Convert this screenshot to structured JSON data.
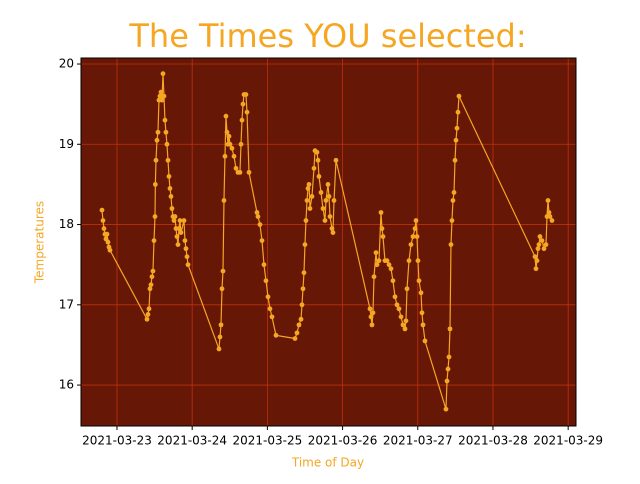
{
  "chart_data": {
    "type": "line",
    "title": "The Times YOU selected:",
    "x_label": "Time of Day",
    "y_label": "Temperatures",
    "color": "#f5a623",
    "background": "#661706",
    "grid_color": "#c2300a",
    "grid": true,
    "x": [
      "2021-03-22T19:13",
      "2021-03-22T19:32",
      "2021-03-22T19:51",
      "2021-03-22T20:10",
      "2021-03-22T20:29",
      "2021-03-22T20:49",
      "2021-03-22T21:08",
      "2021-03-22T21:27",
      "2021-03-22T21:46",
      "2021-03-23T09:35",
      "2021-03-23T09:54",
      "2021-03-23T10:13",
      "2021-03-23T10:32",
      "2021-03-23T10:51",
      "2021-03-23T11:10",
      "2021-03-23T11:29",
      "2021-03-23T11:49",
      "2021-03-23T12:08",
      "2021-03-23T12:15",
      "2021-03-23T12:27",
      "2021-03-23T12:46",
      "2021-03-23T13:05",
      "2021-03-23T13:24",
      "2021-03-23T13:43",
      "2021-03-23T14:03",
      "2021-03-23T14:22",
      "2021-03-23T14:41",
      "2021-03-23T15:00",
      "2021-03-23T15:19",
      "2021-03-23T15:38",
      "2021-03-23T15:57",
      "2021-03-23T16:17",
      "2021-03-23T16:36",
      "2021-03-23T16:55",
      "2021-03-23T17:14",
      "2021-03-23T17:33",
      "2021-03-23T17:52",
      "2021-03-23T18:12",
      "2021-03-23T18:31",
      "2021-03-23T18:50",
      "2021-03-23T19:09",
      "2021-03-23T19:28",
      "2021-03-23T19:47",
      "2021-03-23T20:06",
      "2021-03-23T20:26",
      "2021-03-23T21:23",
      "2021-03-23T21:42",
      "2021-03-23T22:01",
      "2021-03-23T22:21",
      "2021-03-23T22:40",
      "2021-03-24T08:33",
      "2021-03-24T08:52",
      "2021-03-24T09:12",
      "2021-03-24T09:31",
      "2021-03-24T09:50",
      "2021-03-24T10:09",
      "2021-03-24T10:28",
      "2021-03-24T10:47",
      "2021-03-24T11:07",
      "2021-03-24T11:26",
      "2021-03-24T11:45",
      "2021-03-24T12:04",
      "2021-03-24T12:42",
      "2021-03-24T13:21",
      "2021-03-24T13:59",
      "2021-03-24T14:37",
      "2021-03-24T15:15",
      "2021-03-24T15:35",
      "2021-03-24T15:54",
      "2021-03-24T16:13",
      "2021-03-24T16:32",
      "2021-03-24T17:10",
      "2021-03-24T17:30",
      "2021-03-24T18:08",
      "2021-03-24T20:41",
      "2021-03-24T21:00",
      "2021-03-24T21:38",
      "2021-03-24T22:17",
      "2021-03-24T22:55",
      "2021-03-24T23:33",
      "2021-03-25T00:12",
      "2021-03-25T00:50",
      "2021-03-25T01:28",
      "2021-03-25T02:45",
      "2021-03-25T08:49",
      "2021-03-25T09:27",
      "2021-03-25T10:05",
      "2021-03-25T10:44",
      "2021-03-25T11:03",
      "2021-03-25T11:22",
      "2021-03-25T11:41",
      "2021-03-25T12:00",
      "2021-03-25T12:19",
      "2021-03-25T12:39",
      "2021-03-25T12:58",
      "2021-03-25T13:17",
      "2021-03-25T13:36",
      "2021-03-25T14:14",
      "2021-03-25T14:53",
      "2021-03-25T15:12",
      "2021-03-25T15:50",
      "2021-03-25T16:09",
      "2021-03-25T16:28",
      "2021-03-25T17:07",
      "2021-03-25T17:45",
      "2021-03-25T18:23",
      "2021-03-25T18:42",
      "2021-03-25T19:21",
      "2021-03-25T19:40",
      "2021-03-25T19:59",
      "2021-03-25T20:37",
      "2021-03-25T20:56",
      "2021-03-25T21:16",
      "2021-03-25T21:54",
      "2021-03-26T08:45",
      "2021-03-26T09:04",
      "2021-03-26T09:23",
      "2021-03-26T09:42",
      "2021-03-26T10:02",
      "2021-03-26T10:40",
      "2021-03-26T10:59",
      "2021-03-26T11:37",
      "2021-03-26T12:16",
      "2021-03-26T12:35",
      "2021-03-26T12:54",
      "2021-03-26T13:32",
      "2021-03-26T14:11",
      "2021-03-26T14:49",
      "2021-03-26T15:27",
      "2021-03-26T16:05",
      "2021-03-26T16:44",
      "2021-03-26T17:22",
      "2021-03-26T18:00",
      "2021-03-26T18:39",
      "2021-03-26T19:17",
      "2021-03-26T19:55",
      "2021-03-26T20:14",
      "2021-03-26T20:34",
      "2021-03-26T21:12",
      "2021-03-26T21:50",
      "2021-03-26T22:28",
      "2021-03-26T23:07",
      "2021-03-26T23:26",
      "2021-03-26T23:45",
      "2021-03-27T00:04",
      "2021-03-27T00:23",
      "2021-03-27T01:02",
      "2021-03-27T01:21",
      "2021-03-27T01:40",
      "2021-03-27T02:18",
      "2021-03-27T09:00",
      "2021-03-27T09:20",
      "2021-03-27T09:39",
      "2021-03-27T09:58",
      "2021-03-27T10:17",
      "2021-03-27T10:36",
      "2021-03-27T10:55",
      "2021-03-27T11:14",
      "2021-03-27T11:34",
      "2021-03-27T11:53",
      "2021-03-27T12:12",
      "2021-03-27T12:31",
      "2021-03-27T12:50",
      "2021-03-27T13:09",
      "2021-03-28T13:25",
      "2021-03-28T13:44",
      "2021-03-28T14:03",
      "2021-03-28T14:22",
      "2021-03-28T14:41",
      "2021-03-28T15:00",
      "2021-03-28T15:39",
      "2021-03-28T16:17",
      "2021-03-28T16:55",
      "2021-03-28T17:15",
      "2021-03-28T17:34",
      "2021-03-28T17:53",
      "2021-03-28T18:12",
      "2021-03-28T18:50"
    ],
    "values": [
      18.18,
      18.05,
      17.95,
      17.88,
      17.82,
      17.88,
      17.78,
      17.72,
      17.68,
      16.82,
      16.88,
      16.95,
      17.2,
      17.25,
      17.35,
      17.42,
      17.8,
      18.1,
      18.5,
      18.8,
      19.05,
      19.15,
      19.55,
      19.6,
      19.65,
      19.55,
      19.88,
      19.6,
      19.3,
      19.15,
      19.0,
      18.8,
      18.6,
      18.45,
      18.35,
      18.2,
      18.1,
      18.05,
      18.1,
      17.95,
      17.85,
      17.75,
      17.95,
      18.05,
      17.9,
      18.05,
      17.8,
      17.7,
      17.6,
      17.5,
      16.45,
      16.6,
      16.75,
      17.2,
      17.42,
      18.3,
      18.85,
      19.35,
      19.15,
      19.0,
      19.1,
      19.0,
      18.95,
      18.85,
      18.7,
      18.65,
      18.65,
      19.0,
      19.3,
      19.5,
      19.62,
      19.62,
      19.4,
      18.65,
      18.15,
      18.1,
      18.0,
      17.8,
      17.5,
      17.3,
      17.1,
      16.95,
      16.85,
      16.62,
      16.58,
      16.65,
      16.75,
      16.82,
      17.0,
      17.2,
      17.4,
      17.75,
      18.05,
      18.3,
      18.45,
      18.5,
      18.2,
      18.35,
      18.7,
      18.92,
      18.9,
      18.8,
      18.6,
      18.4,
      18.2,
      18.05,
      18.3,
      18.5,
      18.35,
      18.1,
      17.95,
      17.9,
      18.3,
      18.8,
      16.95,
      16.85,
      16.75,
      16.9,
      17.35,
      17.65,
      17.5,
      17.55,
      18.15,
      17.95,
      17.85,
      17.55,
      17.55,
      17.5,
      17.45,
      17.3,
      17.1,
      17.0,
      16.95,
      16.85,
      16.75,
      16.7,
      16.8,
      17.2,
      17.55,
      17.75,
      17.85,
      17.95,
      18.05,
      17.85,
      17.55,
      17.3,
      17.15,
      16.9,
      16.75,
      16.55,
      15.7,
      16.05,
      16.2,
      16.35,
      16.7,
      17.75,
      18.05,
      18.3,
      18.4,
      18.8,
      19.05,
      19.2,
      19.4,
      19.6,
      17.6,
      17.45,
      17.55,
      17.7,
      17.75,
      17.85,
      17.8,
      17.7,
      17.75,
      18.1,
      18.3,
      18.15,
      18.1,
      18.05
    ],
    "xlim": [
      "2021-03-22T12:31",
      "2021-03-29T02:30"
    ],
    "xticks": [
      "2021-03-23",
      "2021-03-24",
      "2021-03-25",
      "2021-03-26",
      "2021-03-27",
      "2021-03-28",
      "2021-03-29"
    ],
    "ylim": [
      15.49,
      20.075
    ],
    "yticks": [
      16,
      17,
      18,
      19,
      20
    ]
  }
}
